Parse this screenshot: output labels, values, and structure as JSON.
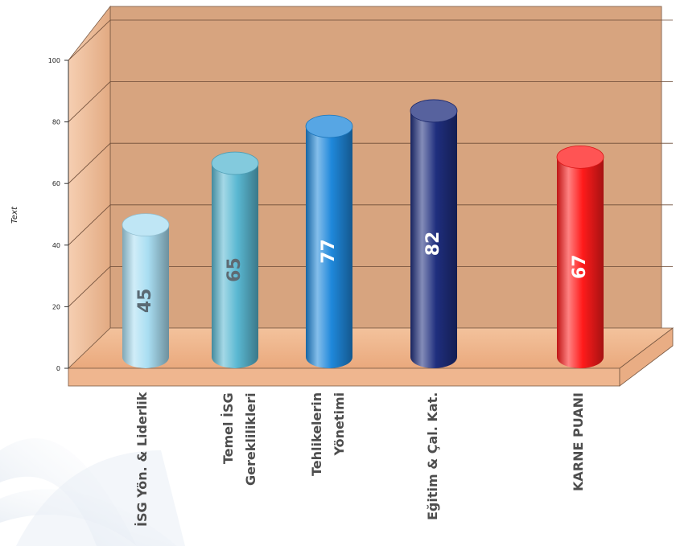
{
  "chart_data": {
    "type": "bar",
    "style": "3d-cylinder",
    "categories": [
      [
        "İSG Yön. & Liderlik"
      ],
      [
        "Temel İSG",
        "Gereklilikleri"
      ],
      [
        "Tehlikelerin",
        "Yönetimi"
      ],
      [
        "Eğitim & Çal. Kat."
      ],
      [
        "KARNE PUANI"
      ]
    ],
    "values": [
      45,
      65,
      77,
      82,
      67
    ],
    "data_labels": [
      "45",
      "65",
      "77",
      "82",
      "67"
    ],
    "bar_colors": [
      "#a9def2",
      "#5ab8d2",
      "#1f88db",
      "#1f2e7e",
      "#ff1b1b"
    ],
    "data_label_colors": [
      "#5a6a74",
      "#5e6a72",
      "#ffffff",
      "#ffffff",
      "#ffffff"
    ],
    "ylabel": "Text",
    "ylim": [
      0,
      100
    ],
    "yticks": [
      "0",
      "20",
      "40",
      "60",
      "80",
      "100"
    ],
    "grid": true,
    "wall_color": "#d7a47f",
    "floor_color": "#efb68f"
  }
}
